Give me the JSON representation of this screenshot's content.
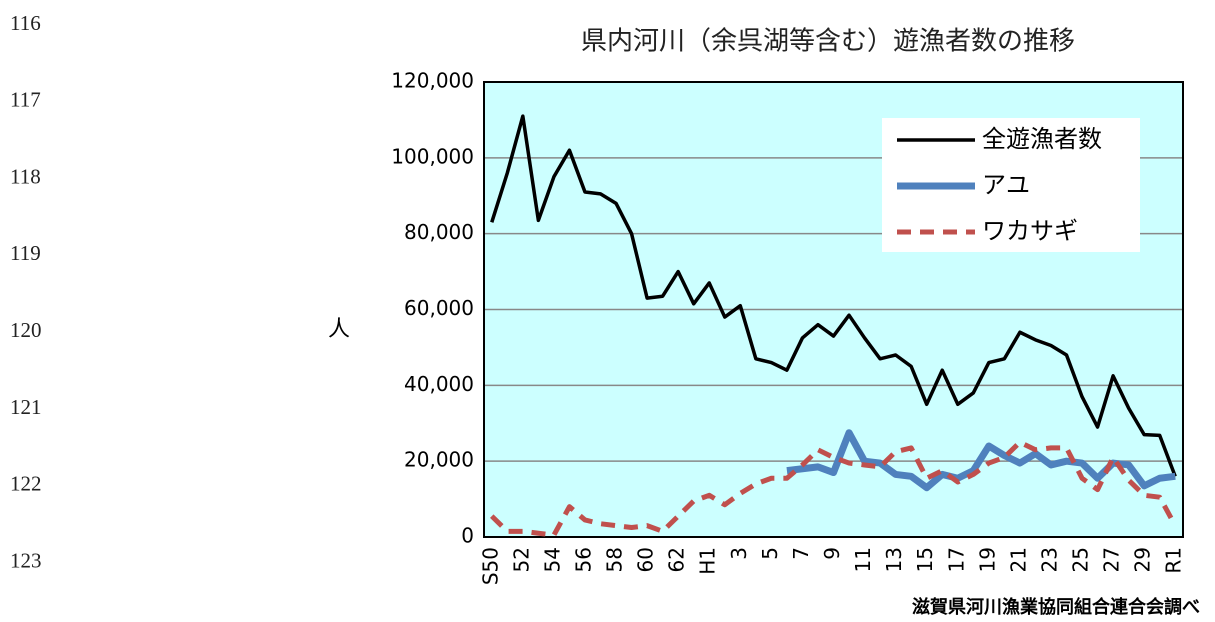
{
  "line_numbers": [
    116,
    117,
    118,
    119,
    120,
    121,
    122,
    123
  ],
  "source_note": "滋賀県河川漁業協同組合連合会調べ",
  "chart_data": {
    "type": "line",
    "title": "県内河川（余呉湖等含む）遊漁者数の推移",
    "y_label": "人",
    "categories": [
      "S50",
      null,
      "52",
      null,
      "54",
      null,
      "56",
      null,
      "58",
      null,
      "60",
      null,
      "62",
      null,
      "H1",
      null,
      "3",
      null,
      "5",
      null,
      "7",
      null,
      "9",
      null,
      "11",
      null,
      "13",
      null,
      "15",
      null,
      "17",
      null,
      "19",
      null,
      "21",
      null,
      "23",
      null,
      "25",
      null,
      "27",
      null,
      "29",
      null,
      "R1"
    ],
    "ylim": [
      0,
      120000
    ],
    "yticks": [
      0,
      {
        "value": 20000,
        "label": "20,000"
      },
      {
        "value": 40000,
        "label": "40,000"
      },
      {
        "value": 60000,
        "label": "60,000"
      },
      {
        "value": 80000,
        "label": "80,000"
      },
      {
        "value": 100000,
        "label": "100,000"
      },
      {
        "value": 120000,
        "label": "120,000"
      }
    ],
    "grid": true,
    "legend_position": "upper right",
    "series": [
      {
        "name": "全遊漁者数",
        "color": "#000000",
        "style": "solid",
        "values": [
          83000,
          96000,
          111000,
          83500,
          95000,
          102000,
          91000,
          90500,
          88000,
          80000,
          63000,
          63500,
          70000,
          61500,
          67000,
          58000,
          61000,
          47000,
          46000,
          44000,
          52500,
          56000,
          53000,
          58500,
          52500,
          47000,
          48000,
          45000,
          35000,
          44000,
          35000,
          38000,
          46000,
          47000,
          54000,
          52000,
          50500,
          48000,
          37000,
          29000,
          42500,
          34000,
          27000,
          26800,
          16000
        ]
      },
      {
        "name": "アユ",
        "color": "#4f81bd",
        "style": "thick",
        "values": [
          null,
          null,
          null,
          null,
          null,
          null,
          null,
          null,
          null,
          null,
          null,
          null,
          null,
          null,
          null,
          null,
          null,
          null,
          null,
          17500,
          18000,
          18500,
          17000,
          27500,
          20000,
          19500,
          16500,
          16000,
          13000,
          16500,
          15500,
          17500,
          24000,
          21500,
          19500,
          22000,
          19000,
          20000,
          19500,
          15500,
          19500,
          19000,
          13500,
          15500,
          16000
        ]
      },
      {
        "name": "ワカサギ",
        "color": "#c0504d",
        "style": "dashed",
        "values": [
          5500,
          1500,
          1500,
          1000,
          500,
          8000,
          4500,
          3500,
          3000,
          2500,
          3000,
          1500,
          5500,
          9500,
          11000,
          8500,
          11500,
          14000,
          15500,
          15500,
          19000,
          23000,
          21000,
          19500,
          19000,
          18500,
          22500,
          23500,
          15500,
          17500,
          14500,
          16500,
          19500,
          21000,
          25000,
          23000,
          23500,
          23500,
          15500,
          12500,
          21000,
          15000,
          11000,
          10500,
          3000
        ]
      }
    ]
  }
}
